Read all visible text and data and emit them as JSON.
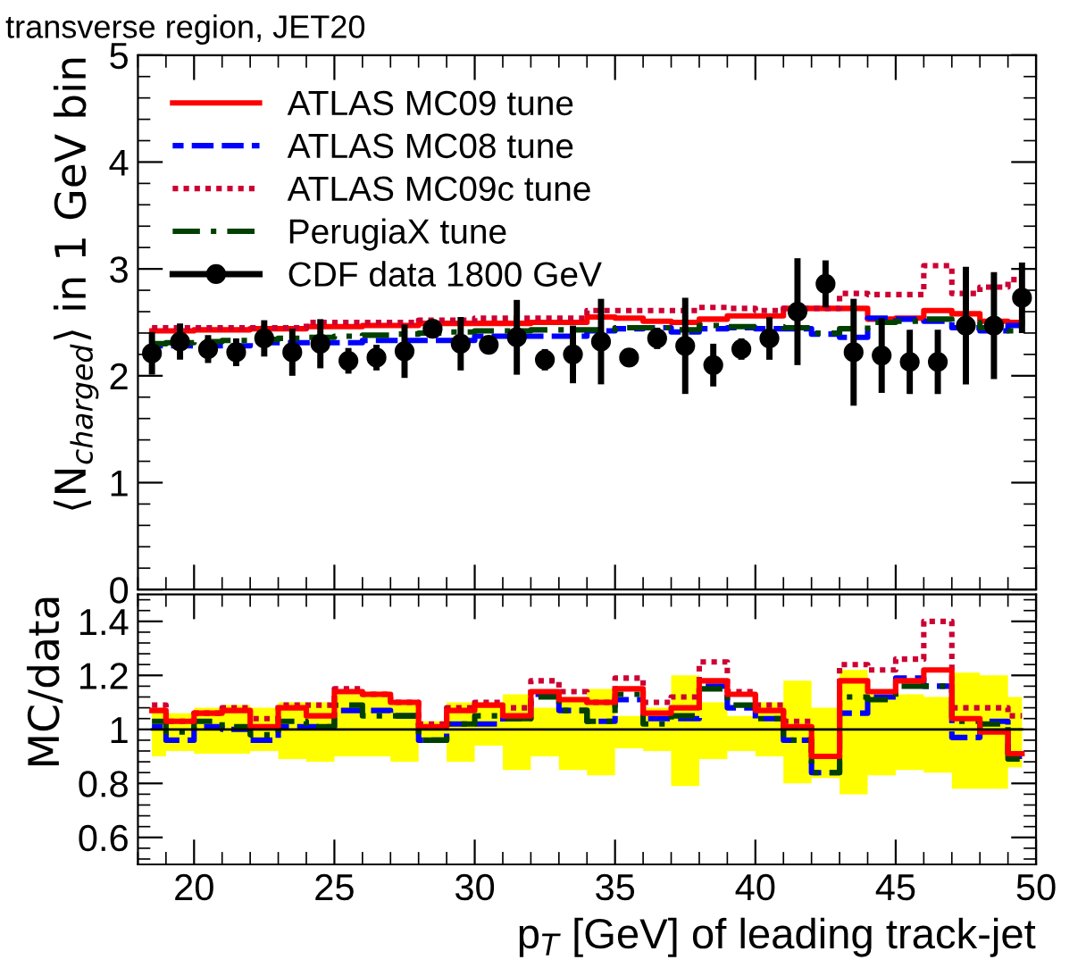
{
  "chart_data": [
    {
      "type": "step",
      "title": "transverse region, JET20",
      "ylabel": "⟨N$_{charged}$⟩ in 1 GeV bin",
      "x": [
        18.5,
        19.5,
        20.5,
        21.5,
        22.5,
        23.5,
        24.5,
        25.5,
        26.5,
        27.5,
        28.5,
        29.5,
        30.5,
        31.5,
        32.5,
        33.5,
        34.5,
        35.5,
        36.5,
        37.5,
        38.5,
        39.5,
        40.5,
        41.5,
        42.5,
        43.5,
        44.5,
        45.5,
        46.5,
        47.5,
        48.5,
        49.5
      ],
      "xlim": [
        18,
        50
      ],
      "xticks": [
        20,
        25,
        30,
        35,
        40,
        45,
        50
      ],
      "ylim": [
        0,
        5
      ],
      "yticks": [
        0,
        1,
        2,
        3,
        4,
        5
      ],
      "tick_labels": "y",
      "legend": "top left",
      "grid": false,
      "series": [
        {
          "name": "ATLAS MC09 tune",
          "color": "#ff0000",
          "line_style": "solid",
          "values": [
            2.42,
            2.42,
            2.43,
            2.43,
            2.44,
            2.44,
            2.46,
            2.46,
            2.47,
            2.47,
            2.49,
            2.49,
            2.49,
            2.49,
            2.5,
            2.5,
            2.55,
            2.54,
            2.51,
            2.5,
            2.53,
            2.56,
            2.56,
            2.63,
            2.63,
            2.63,
            2.53,
            2.54,
            2.61,
            2.58,
            2.51,
            2.5
          ]
        },
        {
          "name": "ATLAS MC08 tune",
          "color": "#0000ff",
          "line_style": "dashed",
          "values": [
            2.28,
            2.28,
            2.28,
            2.28,
            2.31,
            2.31,
            2.31,
            2.31,
            2.33,
            2.33,
            2.33,
            2.33,
            2.37,
            2.37,
            2.37,
            2.37,
            2.42,
            2.44,
            2.45,
            2.41,
            2.44,
            2.45,
            2.44,
            2.44,
            2.39,
            2.36,
            2.54,
            2.53,
            2.51,
            2.45,
            2.42,
            2.47
          ]
        },
        {
          "name": "ATLAS MC09c tune",
          "color": "#cc0033",
          "line_style": "dotted",
          "values": [
            2.45,
            2.45,
            2.45,
            2.45,
            2.45,
            2.45,
            2.5,
            2.5,
            2.5,
            2.5,
            2.52,
            2.52,
            2.54,
            2.54,
            2.54,
            2.54,
            2.61,
            2.61,
            2.61,
            2.61,
            2.64,
            2.63,
            2.61,
            2.63,
            2.63,
            2.77,
            2.76,
            2.76,
            3.03,
            2.77,
            2.83,
            2.9
          ]
        },
        {
          "name": "PerugiaX tune",
          "color": "#004000",
          "line_style": "dashdot",
          "values": [
            2.3,
            2.31,
            2.32,
            2.33,
            2.34,
            2.35,
            2.36,
            2.37,
            2.38,
            2.39,
            2.4,
            2.41,
            2.42,
            2.42,
            2.43,
            2.43,
            2.43,
            2.45,
            2.45,
            2.43,
            2.47,
            2.46,
            2.46,
            2.45,
            2.4,
            2.44,
            2.5,
            2.51,
            2.53,
            2.5,
            2.45,
            2.42
          ]
        },
        {
          "name": "CDF data 1800 GeV",
          "type": "scatter",
          "color": "#000000",
          "marker": "circle",
          "values": [
            2.21,
            2.32,
            2.25,
            2.22,
            2.35,
            2.22,
            2.3,
            2.14,
            2.17,
            2.23,
            2.44,
            2.3,
            2.29,
            2.36,
            2.15,
            2.2,
            2.32,
            2.17,
            2.35,
            2.28,
            2.1,
            2.25,
            2.35,
            2.6,
            2.86,
            2.22,
            2.19,
            2.13,
            2.13,
            2.47,
            2.47,
            2.73
          ],
          "errors": [
            0.2,
            0.17,
            0.13,
            0.13,
            0.17,
            0.22,
            0.23,
            0.12,
            0.12,
            0.25,
            0.08,
            0.25,
            0.05,
            0.35,
            0.1,
            0.27,
            0.4,
            0.05,
            0.1,
            0.45,
            0.2,
            0.1,
            0.2,
            0.5,
            0.22,
            0.5,
            0.35,
            0.3,
            0.3,
            0.55,
            0.5,
            0.33
          ]
        }
      ]
    },
    {
      "type": "step",
      "xlabel": "p$_{T}$ [GeV] of leading track-jet",
      "ylabel": "MC/data",
      "x": [
        18.5,
        19.5,
        20.5,
        21.5,
        22.5,
        23.5,
        24.5,
        25.5,
        26.5,
        27.5,
        28.5,
        29.5,
        30.5,
        31.5,
        32.5,
        33.5,
        34.5,
        35.5,
        36.5,
        37.5,
        38.5,
        39.5,
        40.5,
        41.5,
        42.5,
        43.5,
        44.5,
        45.5,
        46.5,
        47.5,
        48.5,
        49.5
      ],
      "xlim": [
        18,
        50
      ],
      "xticks": [
        20,
        25,
        30,
        35,
        40,
        45,
        50
      ],
      "ylim": [
        0.5,
        1.5
      ],
      "yticks": [
        0.6,
        0.8,
        1,
        1.2,
        1.4
      ],
      "grid": false,
      "series": [
        {
          "color": "#000000",
          "line_style": "solid",
          "values": [
            1,
            1,
            1,
            1,
            1,
            1,
            1,
            1,
            1,
            1,
            1,
            1,
            1,
            1,
            1,
            1,
            1,
            1,
            1,
            1,
            1,
            1,
            1,
            1,
            1,
            1,
            1,
            1,
            1,
            1,
            1,
            1
          ],
          "lower": [
            0.9,
            0.92,
            0.91,
            0.91,
            0.92,
            0.89,
            0.88,
            0.9,
            0.9,
            0.88,
            0.95,
            0.88,
            0.94,
            0.85,
            0.9,
            0.85,
            0.83,
            0.93,
            0.92,
            0.79,
            0.89,
            0.92,
            0.9,
            0.8,
            0.82,
            0.76,
            0.83,
            0.85,
            0.84,
            0.78,
            0.78,
            0.86
          ],
          "upper": [
            1.08,
            1.06,
            1.08,
            1.09,
            1.08,
            1.1,
            1.1,
            1.13,
            1.14,
            1.1,
            1.03,
            1.1,
            1.1,
            1.13,
            1.08,
            1.12,
            1.15,
            1.05,
            1.08,
            1.2,
            1.1,
            1.05,
            1.1,
            1.18,
            1.08,
            1.22,
            1.13,
            1.13,
            1.12,
            1.21,
            1.2,
            1.12
          ]
        },
        {
          "color": "#0000ff",
          "line_style": "dashed",
          "values": [
            1.01,
            0.96,
            1.01,
            1.0,
            0.96,
            1.01,
            1.01,
            1.07,
            1.07,
            1.05,
            0.96,
            1.02,
            1.02,
            1.04,
            1.13,
            1.07,
            1.03,
            1.11,
            1.04,
            1.04,
            1.16,
            1.08,
            1.04,
            0.96,
            0.84,
            1.06,
            1.12,
            1.19,
            1.16,
            0.97,
            1.03,
            0.9
          ]
        },
        {
          "color": "#004000",
          "line_style": "dashdot",
          "values": [
            1.03,
            0.99,
            1.03,
            1.01,
            0.98,
            1.03,
            1.01,
            1.09,
            1.05,
            1.05,
            0.96,
            1.02,
            1.05,
            1.04,
            1.12,
            1.07,
            1.03,
            1.13,
            1.02,
            1.05,
            1.15,
            1.09,
            1.04,
            0.96,
            0.84,
            1.12,
            1.11,
            1.16,
            1.16,
            1.03,
            1.02,
            0.89
          ]
        },
        {
          "color": "#cc0033",
          "line_style": "dotted",
          "values": [
            1.09,
            1.03,
            1.06,
            1.08,
            1.04,
            1.09,
            1.09,
            1.15,
            1.13,
            1.1,
            1.02,
            1.08,
            1.1,
            1.08,
            1.18,
            1.14,
            1.1,
            1.19,
            1.1,
            1.12,
            1.25,
            1.14,
            1.09,
            1.03,
            0.9,
            1.24,
            1.22,
            1.26,
            1.4,
            1.08,
            1.08,
            1.05
          ]
        },
        {
          "color": "#ff0000",
          "line_style": "solid",
          "values": [
            1.07,
            1.03,
            1.06,
            1.07,
            1.01,
            1.08,
            1.05,
            1.14,
            1.13,
            1.1,
            1.01,
            1.07,
            1.09,
            1.05,
            1.14,
            1.11,
            1.1,
            1.15,
            1.06,
            1.08,
            1.18,
            1.13,
            1.07,
            1.01,
            0.9,
            1.18,
            1.14,
            1.18,
            1.22,
            1.04,
            0.99,
            0.91
          ]
        }
      ]
    }
  ]
}
